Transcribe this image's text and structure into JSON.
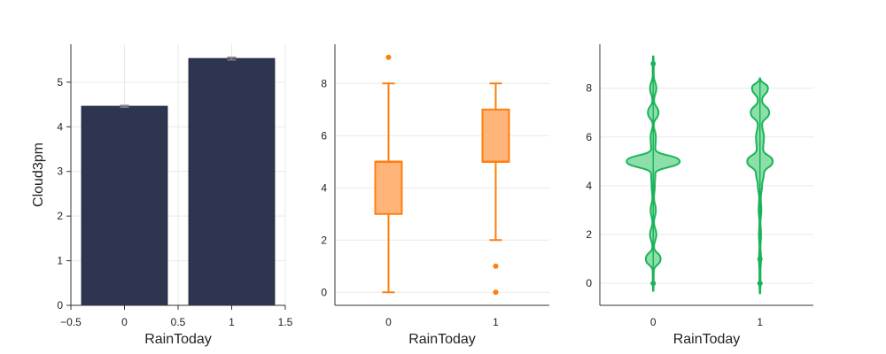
{
  "chart_data": [
    {
      "type": "bar",
      "categories": [
        0,
        1
      ],
      "values": [
        4.46,
        5.53
      ],
      "error": [
        0.02,
        0.03
      ],
      "xlabel": "RainToday",
      "ylabel": "Cloud3pm",
      "xlim": [
        -0.5,
        1.5
      ],
      "ylim": [
        0,
        5.85
      ],
      "xticks": [
        -0.5,
        0,
        0.5,
        1,
        1.5
      ],
      "xtick_labels": [
        "−0.5",
        "0",
        "0.5",
        "1",
        "1.5"
      ],
      "yticks": [
        0,
        1,
        2,
        3,
        4,
        5
      ],
      "bar_width": 0.8,
      "color": "#2d3550",
      "error_color": "#8a8a8a",
      "grid": true
    },
    {
      "type": "box",
      "categories": [
        0,
        1
      ],
      "boxes": [
        {
          "min": 0,
          "q1": 3,
          "median": 5,
          "q3": 5,
          "max": 8,
          "outliers": [
            9
          ]
        },
        {
          "min": 2,
          "q1": 5,
          "median": 5,
          "q3": 7,
          "max": 8,
          "outliers": [
            1,
            0
          ]
        }
      ],
      "xlabel": "RainToday",
      "ylim": [
        -0.5,
        9.5
      ],
      "yticks": [
        0,
        2,
        4,
        6,
        8
      ],
      "color": "#ff7f0e",
      "fill": "#ffb57a",
      "grid": true
    },
    {
      "type": "violin",
      "categories": [
        0,
        1
      ],
      "violins": [
        {
          "min": -0.3,
          "max": 9.3,
          "density": [
            [
              -0.3,
              0.01
            ],
            [
              0,
              0.015
            ],
            [
              0.5,
              0.02
            ],
            [
              1,
              0.28
            ],
            [
              1.5,
              0.03
            ],
            [
              2,
              0.12
            ],
            [
              2.5,
              0.03
            ],
            [
              3,
              0.1
            ],
            [
              3.5,
              0.03
            ],
            [
              4,
              0.06
            ],
            [
              4.5,
              0.08
            ],
            [
              5,
              1.0
            ],
            [
              5.5,
              0.08
            ],
            [
              6,
              0.1
            ],
            [
              6.5,
              0.02
            ],
            [
              7,
              0.2
            ],
            [
              7.5,
              0.03
            ],
            [
              8,
              0.12
            ],
            [
              8.5,
              0.02
            ],
            [
              9,
              0.02
            ],
            [
              9.3,
              0.01
            ]
          ],
          "median": 5,
          "q1": 3,
          "q3": 5,
          "points": [
            0,
            9
          ]
        },
        {
          "min": -0.4,
          "max": 8.4,
          "density": [
            [
              -0.4,
              0.01
            ],
            [
              0,
              0.02
            ],
            [
              0.5,
              0.02
            ],
            [
              1,
              0.04
            ],
            [
              1.5,
              0.02
            ],
            [
              2,
              0.04
            ],
            [
              2.5,
              0.02
            ],
            [
              3,
              0.05
            ],
            [
              3.5,
              0.03
            ],
            [
              4,
              0.08
            ],
            [
              4.5,
              0.15
            ],
            [
              5,
              0.48
            ],
            [
              5.5,
              0.12
            ],
            [
              6,
              0.15
            ],
            [
              6.5,
              0.08
            ],
            [
              7,
              0.35
            ],
            [
              7.5,
              0.08
            ],
            [
              8,
              0.3
            ],
            [
              8.4,
              0.01
            ]
          ],
          "median": 5,
          "q1": 5,
          "q3": 7,
          "points": [
            0,
            1
          ]
        }
      ],
      "xlabel": "RainToday",
      "ylim": [
        -0.9,
        9.8
      ],
      "yticks": [
        0,
        2,
        4,
        6,
        8
      ],
      "color": "#1bb35a",
      "fill": "#7fdca0",
      "grid": true
    }
  ]
}
